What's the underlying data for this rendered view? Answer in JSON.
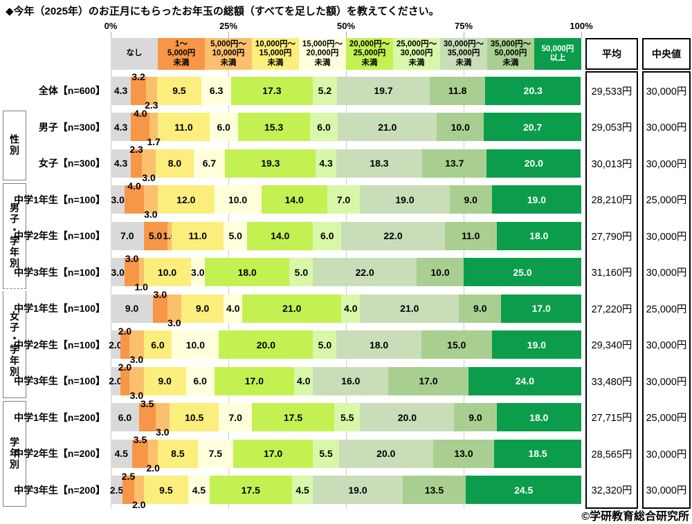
{
  "title": "◆今年（2025年）のお正月にもらったお年玉の総額（すべてを足した額）を教えてください。",
  "footer": "©学研教育総合研究所",
  "summary": {
    "average_label": "平均",
    "median_label": "中央値"
  },
  "chart_data": {
    "type": "bar",
    "variant": "horizontal-stacked-100pct",
    "x_axis": {
      "ticks": [
        "0%",
        "25%",
        "50%",
        "75%",
        "100%"
      ],
      "range": [
        0,
        100
      ]
    },
    "categories": [
      {
        "name": "なし",
        "header": "なし",
        "color": "#d9d9d9",
        "text_color": "#000000"
      },
      {
        "name": "1～5,000円未満",
        "header": "1～\n5,000円\n未満",
        "color": "#f79646",
        "text_color": "#000000"
      },
      {
        "name": "5,000円～10,000円未満",
        "header": "5,000円～\n10,000円\n未満",
        "color": "#fac06e",
        "text_color": "#000000"
      },
      {
        "name": "10,000円～15,000円未満",
        "header": "10,000円～\n15,000円\n未満",
        "color": "#fbee7c",
        "text_color": "#000000"
      },
      {
        "name": "15,000円～20,000円未満",
        "header": "15,000円～\n20,000円\n未満",
        "color": "#ffffdc",
        "text_color": "#000000"
      },
      {
        "name": "20,000円～25,000円未満",
        "header": "20,000円～\n25,000円\n未満",
        "color": "#c3f152",
        "text_color": "#000000"
      },
      {
        "name": "25,000円～30,000円未満",
        "header": "25,000円～\n30,000円\n未満",
        "color": "#d9f7a9",
        "text_color": "#000000"
      },
      {
        "name": "30,000円～35,000円未満",
        "header": "30,000円～\n35,000円\n未満",
        "color": "#c9ddb9",
        "text_color": "#000000"
      },
      {
        "name": "35,000円～50,000円未満",
        "header": "35,000円～\n50,000円\n未満",
        "color": "#a8cf90",
        "text_color": "#000000"
      },
      {
        "name": "50,000円以上",
        "header": "50,000円\n以上",
        "color": "#0b9d4c",
        "text_color": "#ffffff"
      }
    ],
    "groups": [
      {
        "label": "",
        "rows": [
          {
            "label": "全体【n=600】",
            "values": [
              4.3,
              3.2,
              2.3,
              9.5,
              6.3,
              17.3,
              5.2,
              19.7,
              11.8,
              20.3
            ],
            "average": "29,533円",
            "median": "30,000円"
          }
        ]
      },
      {
        "label": "性別",
        "rows": [
          {
            "label": "男子【n=300】",
            "values": [
              4.3,
              4.0,
              1.7,
              11.0,
              6.0,
              15.3,
              6.0,
              21.0,
              10.0,
              20.7
            ],
            "average": "29,053円",
            "median": "30,000円"
          },
          {
            "label": "女子【n=300】",
            "values": [
              4.3,
              2.3,
              3.0,
              8.0,
              6.7,
              19.3,
              4.3,
              18.3,
              13.7,
              20.0
            ],
            "average": "30,013円",
            "median": "30,000円"
          }
        ]
      },
      {
        "label": "男子・学年別",
        "rows": [
          {
            "label": "中学1年生【n=100】",
            "values": [
              3.0,
              4.0,
              3.0,
              12.0,
              10.0,
              14.0,
              7.0,
              19.0,
              9.0,
              19.0
            ],
            "average": "28,210円",
            "median": "25,000円"
          },
          {
            "label": "中学2年生【n=100】",
            "values": [
              7.0,
              5.0,
              1.0,
              11.0,
              5.0,
              14.0,
              6.0,
              22.0,
              11.0,
              18.0
            ],
            "average": "27,790円",
            "median": "30,000円"
          },
          {
            "label": "中学3年生【n=100】",
            "values": [
              3.0,
              3.0,
              1.0,
              10.0,
              3.0,
              18.0,
              5.0,
              22.0,
              10.0,
              25.0
            ],
            "average": "31,160円",
            "median": "30,000円"
          }
        ]
      },
      {
        "label": "女子・学年別",
        "rows": [
          {
            "label": "中学1年生【n=100】",
            "values": [
              9.0,
              3.0,
              3.0,
              9.0,
              4.0,
              21.0,
              4.0,
              21.0,
              9.0,
              17.0
            ],
            "average": "27,220円",
            "median": "25,000円"
          },
          {
            "label": "中学2年生【n=100】",
            "values": [
              2.0,
              2.0,
              3.0,
              6.0,
              10.0,
              20.0,
              5.0,
              18.0,
              15.0,
              19.0
            ],
            "average": "29,340円",
            "median": "30,000円"
          },
          {
            "label": "中学3年生【n=100】",
            "values": [
              2.0,
              2.0,
              3.0,
              9.0,
              6.0,
              17.0,
              4.0,
              16.0,
              17.0,
              24.0
            ],
            "average": "33,480円",
            "median": "30,000円"
          }
        ]
      },
      {
        "label": "学年別",
        "rows": [
          {
            "label": "中学1年生【n=200】",
            "values": [
              6.0,
              3.5,
              3.0,
              10.5,
              7.0,
              17.5,
              5.5,
              20.0,
              9.0,
              18.0
            ],
            "average": "27,715円",
            "median": "25,000円"
          },
          {
            "label": "中学2年生【n=200】",
            "values": [
              4.5,
              3.5,
              2.0,
              8.5,
              7.5,
              17.0,
              5.5,
              20.0,
              13.0,
              18.5
            ],
            "average": "28,565円",
            "median": "30,000円"
          },
          {
            "label": "中学3年生【n=200】",
            "values": [
              2.5,
              2.5,
              2.0,
              9.5,
              4.5,
              17.5,
              4.5,
              19.0,
              13.5,
              24.5
            ],
            "average": "32,320円",
            "median": "30,000円"
          }
        ]
      }
    ]
  }
}
